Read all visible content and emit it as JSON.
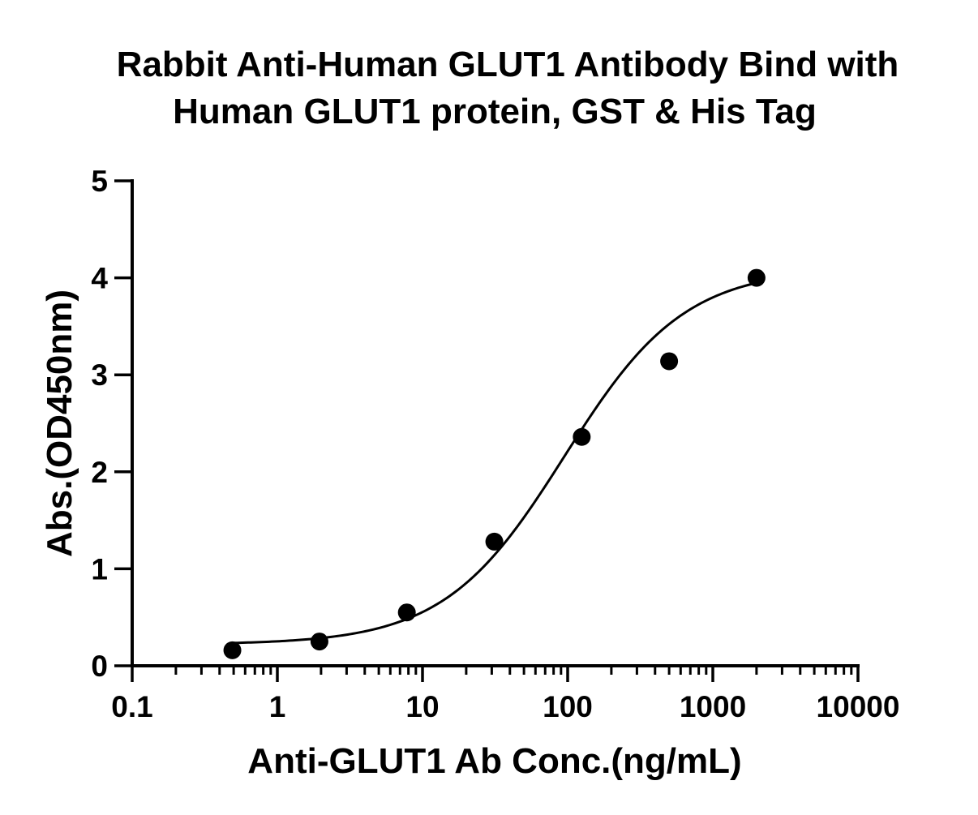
{
  "chart_data": {
    "type": "scatter",
    "title_lines": [
      "Rabbit Anti-Human GLUT1 Antibody Bind with",
      "Human GLUT1 protein, GST & His Tag"
    ],
    "xlabel": "Anti-GLUT1 Ab Conc.(ng/mL)",
    "ylabel": "Abs.(OD450nm)",
    "x_scale": "log",
    "xlim": [
      0.1,
      10000
    ],
    "ylim": [
      0,
      5
    ],
    "x_ticks": [
      0.1,
      1,
      10,
      100,
      1000,
      10000
    ],
    "x_tick_labels": [
      "0.1",
      "1",
      "10",
      "100",
      "1000",
      "10000"
    ],
    "y_ticks": [
      0,
      1,
      2,
      3,
      4,
      5
    ],
    "y_tick_labels": [
      "0",
      "1",
      "2",
      "3",
      "4",
      "5"
    ],
    "grid": false,
    "points": {
      "x": [
        0.49,
        1.95,
        7.8,
        31.25,
        125,
        500,
        2000
      ],
      "y": [
        0.16,
        0.25,
        0.55,
        1.28,
        2.36,
        3.14,
        4.0
      ]
    },
    "fit_curve": {
      "model": "4PL",
      "bottom": 0.22,
      "top": 4.1,
      "ec50": 95,
      "hill": 1.05,
      "x_range": [
        0.49,
        2000
      ]
    }
  }
}
